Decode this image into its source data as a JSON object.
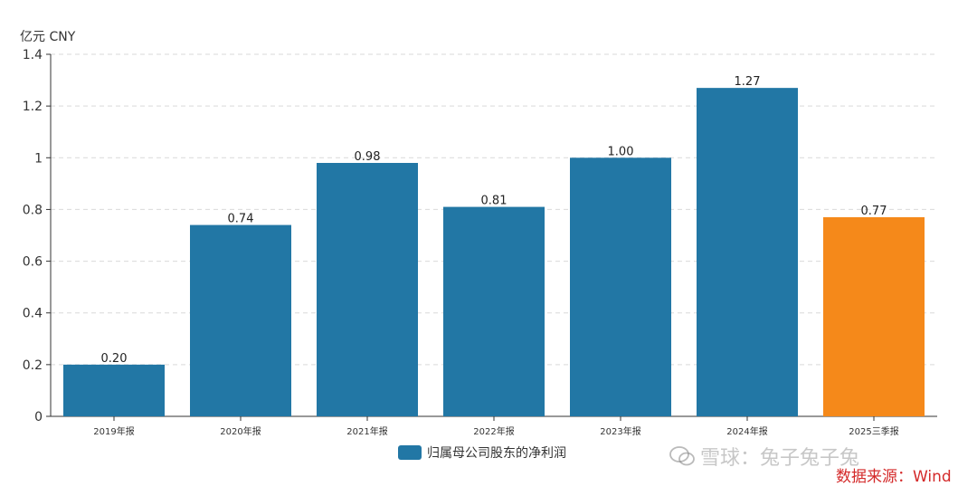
{
  "unit_label": "亿元  CNY",
  "legend_label": "归属母公司股东的净利润",
  "source_text": "数据来源：Wind",
  "watermark_text": "雪球：兔子兔子兔",
  "colors": {
    "primary": "#2277a5",
    "highlight": "#f5891a",
    "grid": "#d9d9d9",
    "axis": "#333333"
  },
  "chart_data": {
    "type": "bar",
    "categories": [
      "2019年报",
      "2020年报",
      "2021年报",
      "2022年报",
      "2023年报",
      "2024年报",
      "2025三季报"
    ],
    "values": [
      0.2,
      0.74,
      0.98,
      0.81,
      1.0,
      1.27,
      0.77
    ],
    "value_labels": [
      "0.20",
      "0.74",
      "0.98",
      "0.81",
      "1.00",
      "1.27",
      "0.77"
    ],
    "highlight_index": 6,
    "ylim": [
      0,
      1.4
    ],
    "yticks": [
      0,
      0.2,
      0.4,
      0.6,
      0.8,
      1,
      1.2,
      1.4
    ],
    "ytick_labels": [
      "0",
      "0.2",
      "0.4",
      "0.6",
      "0.8",
      "1",
      "1.2",
      "1.4"
    ],
    "grid": true,
    "legend_position": "bottom"
  }
}
